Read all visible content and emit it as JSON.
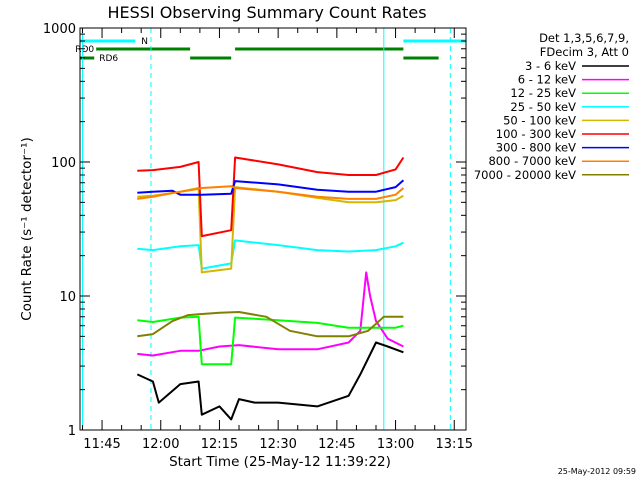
{
  "chart_data": {
    "type": "line",
    "title": "HESSI Observing Summary Count Rates",
    "xlabel": "Start Time (25-May-12 11:39:22)",
    "ylabel": "Count Rate (s⁻¹ detector⁻¹)",
    "x_unit": "time (HH:MM UT)",
    "xlim": [
      "11:39:22",
      "13:18:00"
    ],
    "ylim": [
      1,
      1000
    ],
    "yscale": "log",
    "x_ticks": [
      "11:45",
      "12:00",
      "12:15",
      "12:30",
      "12:45",
      "13:00",
      "13:15"
    ],
    "y_ticks": [
      {
        "value": 1,
        "label": "1"
      },
      {
        "value": 10,
        "label": "10"
      },
      {
        "value": 100,
        "label": "100"
      },
      {
        "value": 1000,
        "label": "1000"
      }
    ],
    "legend": {
      "placement": "right",
      "header": [
        "Det 1,3,5,6,7,9,",
        "FDecim 3, Att 0"
      ]
    },
    "series": [
      {
        "name": "3 - 6 keV",
        "color": "#000000",
        "points": [
          [
            "11:54:00",
            2.6
          ],
          [
            "11:58:00",
            2.3
          ],
          [
            "11:59:30",
            1.6
          ],
          [
            "12:05:00",
            2.2
          ],
          [
            "12:09:40",
            2.3
          ],
          [
            "12:10:30",
            1.3
          ],
          [
            "12:15:00",
            1.5
          ],
          [
            "12:18:00",
            1.2
          ],
          [
            "12:20:00",
            1.7
          ],
          [
            "12:24:00",
            1.6
          ],
          [
            "12:30:00",
            1.6
          ],
          [
            "12:40:00",
            1.5
          ],
          [
            "12:48:00",
            1.8
          ],
          [
            "12:51:00",
            2.6
          ],
          [
            "12:55:00",
            4.5
          ],
          [
            "12:58:00",
            4.2
          ],
          [
            "13:02:00",
            3.8
          ]
        ]
      },
      {
        "name": "6 - 12 keV",
        "color": "#ff00ff",
        "points": [
          [
            "11:54:00",
            3.7
          ],
          [
            "11:58:00",
            3.6
          ],
          [
            "12:05:00",
            3.9
          ],
          [
            "12:09:40",
            3.9
          ],
          [
            "12:15:00",
            4.2
          ],
          [
            "12:20:00",
            4.3
          ],
          [
            "12:30:00",
            4.0
          ],
          [
            "12:40:00",
            4.0
          ],
          [
            "12:48:00",
            4.5
          ],
          [
            "12:51:00",
            5.5
          ],
          [
            "12:52:30",
            15.0
          ],
          [
            "12:53:30",
            10.0
          ],
          [
            "12:55:00",
            6.5
          ],
          [
            "12:58:00",
            4.8
          ],
          [
            "13:02:00",
            4.2
          ]
        ]
      },
      {
        "name": "12 - 25 keV",
        "color": "#00ff00",
        "points": [
          [
            "11:54:00",
            6.6
          ],
          [
            "11:58:00",
            6.4
          ],
          [
            "12:05:00",
            6.9
          ],
          [
            "12:09:40",
            7.0
          ],
          [
            "12:10:30",
            3.1
          ],
          [
            "12:18:00",
            3.1
          ],
          [
            "12:19:00",
            6.9
          ],
          [
            "12:30:00",
            6.6
          ],
          [
            "12:40:00",
            6.3
          ],
          [
            "12:48:00",
            5.8
          ],
          [
            "12:55:00",
            5.8
          ],
          [
            "13:00:00",
            5.8
          ],
          [
            "13:02:00",
            6.0
          ]
        ]
      },
      {
        "name": "25 - 50 keV",
        "color": "#00ffff",
        "points": [
          [
            "11:54:00",
            22.5
          ],
          [
            "11:58:00",
            22.0
          ],
          [
            "12:05:00",
            23.5
          ],
          [
            "12:09:40",
            24.0
          ],
          [
            "12:10:30",
            16.0
          ],
          [
            "12:18:00",
            17.5
          ],
          [
            "12:19:00",
            26.0
          ],
          [
            "12:30:00",
            24.0
          ],
          [
            "12:40:00",
            22.0
          ],
          [
            "12:48:00",
            21.5
          ],
          [
            "12:55:00",
            22.0
          ],
          [
            "13:00:00",
            23.5
          ],
          [
            "13:02:00",
            25.0
          ]
        ]
      },
      {
        "name": "50 - 100 keV",
        "color": "#d4b800",
        "points": [
          [
            "11:54:00",
            55.0
          ],
          [
            "11:58:00",
            56.0
          ],
          [
            "12:05:00",
            60.0
          ],
          [
            "12:09:40",
            64.0
          ],
          [
            "12:10:30",
            15.0
          ],
          [
            "12:18:00",
            16.0
          ],
          [
            "12:19:00",
            65.0
          ],
          [
            "12:30:00",
            60.0
          ],
          [
            "12:40:00",
            54.0
          ],
          [
            "12:48:00",
            50.0
          ],
          [
            "12:55:00",
            50.0
          ],
          [
            "13:00:00",
            52.0
          ],
          [
            "13:02:00",
            56.0
          ]
        ]
      },
      {
        "name": "100 - 300 keV",
        "color": "#ff0000",
        "points": [
          [
            "11:54:00",
            86.0
          ],
          [
            "11:58:00",
            87.0
          ],
          [
            "12:05:00",
            92.0
          ],
          [
            "12:09:40",
            100.0
          ],
          [
            "12:10:30",
            28.0
          ],
          [
            "12:18:00",
            31.0
          ],
          [
            "12:19:00",
            108.0
          ],
          [
            "12:30:00",
            96.0
          ],
          [
            "12:40:00",
            84.0
          ],
          [
            "12:48:00",
            80.0
          ],
          [
            "12:55:00",
            80.0
          ],
          [
            "13:00:00",
            88.0
          ],
          [
            "13:02:00",
            108.0
          ]
        ]
      },
      {
        "name": "300 - 800 keV",
        "color": "#0000ff",
        "points": [
          [
            "11:54:00",
            59.0
          ],
          [
            "11:58:00",
            60.0
          ],
          [
            "12:03:00",
            61.0
          ],
          [
            "12:05:00",
            57.0
          ],
          [
            "12:09:40",
            57.0
          ],
          [
            "12:10:30",
            57.0
          ],
          [
            "12:18:00",
            58.0
          ],
          [
            "12:19:00",
            72.0
          ],
          [
            "12:30:00",
            68.0
          ],
          [
            "12:40:00",
            62.0
          ],
          [
            "12:48:00",
            60.0
          ],
          [
            "12:55:00",
            60.0
          ],
          [
            "13:00:00",
            65.0
          ],
          [
            "13:02:00",
            73.0
          ]
        ]
      },
      {
        "name": "800 - 7000 keV",
        "color": "#ff8000",
        "points": [
          [
            "11:54:00",
            53.0
          ],
          [
            "11:58:00",
            55.0
          ],
          [
            "12:05:00",
            60.0
          ],
          [
            "12:09:40",
            63.0
          ],
          [
            "12:10:30",
            64.0
          ],
          [
            "12:18:00",
            66.0
          ],
          [
            "12:19:00",
            64.0
          ],
          [
            "12:30:00",
            60.0
          ],
          [
            "12:40:00",
            55.0
          ],
          [
            "12:48:00",
            53.0
          ],
          [
            "12:55:00",
            53.0
          ],
          [
            "13:00:00",
            57.0
          ],
          [
            "13:02:00",
            64.0
          ]
        ]
      },
      {
        "name": "7000 - 20000 keV",
        "color": "#808000",
        "points": [
          [
            "11:54:00",
            5.0
          ],
          [
            "11:58:00",
            5.2
          ],
          [
            "12:03:00",
            6.5
          ],
          [
            "12:07:00",
            7.2
          ],
          [
            "12:09:40",
            7.3
          ],
          [
            "12:15:00",
            7.5
          ],
          [
            "12:20:00",
            7.6
          ],
          [
            "12:27:00",
            7.0
          ],
          [
            "12:33:00",
            5.5
          ],
          [
            "12:40:00",
            5.0
          ],
          [
            "12:48:00",
            5.0
          ],
          [
            "12:53:00",
            5.5
          ],
          [
            "12:57:00",
            7.0
          ],
          [
            "13:02:00",
            7.0
          ]
        ]
      }
    ],
    "state_bars": [
      {
        "label": "N",
        "color": "#00ffff",
        "level": 1,
        "segments": [
          [
            "11:39:22",
            "11:53:30"
          ],
          [
            "13:02:00",
            "13:18:00"
          ]
        ]
      },
      {
        "label": "RD0",
        "color": "#008000",
        "level": 2,
        "segments": [
          [
            "11:43:30",
            "12:07:30"
          ],
          [
            "12:19:00",
            "13:02:00"
          ]
        ]
      },
      {
        "label": "RD6",
        "color": "#008000",
        "level": 3,
        "segments": [
          [
            "11:39:22",
            "11:43:00"
          ],
          [
            "12:07:30",
            "12:18:00"
          ],
          [
            "13:02:00",
            "13:11:00"
          ]
        ]
      }
    ],
    "vertical_markers": [
      {
        "time": "11:40:00",
        "color": "#00ffff",
        "style": "solid"
      },
      {
        "time": "11:57:30",
        "color": "#00ffff",
        "style": "dashed"
      },
      {
        "time": "12:57:00",
        "color": "#00ffff",
        "style": "solid"
      },
      {
        "time": "13:14:00",
        "color": "#00ffff",
        "style": "dashed"
      }
    ]
  },
  "footer": {
    "timestamp": "25-May-2012 09:59"
  }
}
